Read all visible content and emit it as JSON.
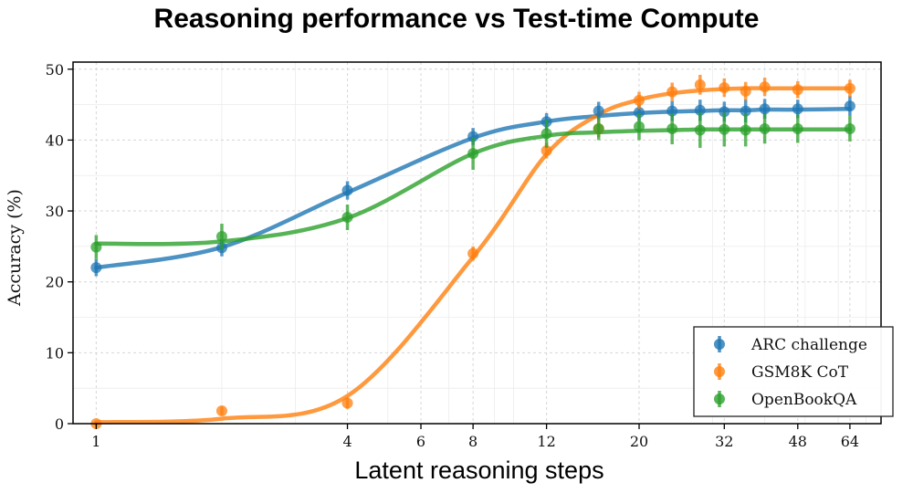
{
  "chart_data": {
    "type": "line",
    "title": "Reasoning performance vs Test-time Compute",
    "xlabel": "Latent reasoning steps",
    "ylabel": "Accuracy (%)",
    "x_scale": "log",
    "xlim": [
      0.88,
      76
    ],
    "ylim": [
      0,
      51
    ],
    "x_ticks": [
      1,
      4,
      6,
      8,
      12,
      20,
      32,
      48,
      64
    ],
    "x_tick_labels": [
      "1",
      "4",
      "6",
      "8",
      "12",
      "20",
      "32",
      "48",
      "64"
    ],
    "y_ticks": [
      0,
      10,
      20,
      30,
      40,
      50
    ],
    "y_tick_labels": [
      "0",
      "10",
      "20",
      "30",
      "40",
      "50"
    ],
    "grid": true,
    "legend_position": "bottom-right",
    "x": [
      1,
      2,
      4,
      8,
      12,
      16,
      20,
      24,
      28,
      32,
      36,
      40,
      48,
      64
    ],
    "series": [
      {
        "name": "ARC challenge",
        "color": "#1f77b4",
        "values": [
          22.0,
          24.8,
          32.9,
          40.5,
          42.6,
          44.1,
          43.9,
          44.1,
          44.2,
          44.0,
          44.1,
          44.4,
          44.4,
          44.8
        ],
        "errors": [
          1.2,
          1.2,
          1.3,
          1.2,
          1.2,
          1.3,
          1.2,
          1.4,
          1.5,
          1.4,
          1.6,
          1.4,
          1.3,
          1.4
        ],
        "curve": [
          22.0,
          24.9,
          32.6,
          40.3,
          42.6,
          43.4,
          43.8,
          44.0,
          44.1,
          44.2,
          44.2,
          44.3,
          44.3,
          44.4
        ]
      },
      {
        "name": "GSM8K CoT",
        "color": "#ff7f0e",
        "values": [
          0.0,
          1.8,
          2.9,
          24.0,
          38.5,
          41.6,
          45.6,
          46.8,
          47.8,
          47.4,
          46.9,
          47.5,
          47.1,
          47.3
        ],
        "errors": [
          0.3,
          0.6,
          0.8,
          1.0,
          1.1,
          1.2,
          1.2,
          1.3,
          1.4,
          1.3,
          1.3,
          1.3,
          1.2,
          1.2
        ],
        "curve": [
          0.2,
          0.7,
          3.9,
          23.5,
          38.0,
          43.6,
          45.7,
          46.6,
          47.0,
          47.2,
          47.3,
          47.3,
          47.3,
          47.3
        ]
      },
      {
        "name": "OpenBookQA",
        "color": "#2ca02c",
        "values": [
          24.9,
          26.4,
          29.1,
          38.1,
          40.9,
          41.6,
          41.9,
          41.6,
          41.4,
          41.5,
          41.4,
          41.6,
          41.6,
          41.6
        ],
        "errors": [
          1.7,
          1.8,
          1.8,
          2.3,
          2.0,
          1.6,
          1.9,
          2.2,
          2.5,
          2.4,
          2.3,
          2.1,
          2.0,
          1.8
        ],
        "curve": [
          25.4,
          25.7,
          29.0,
          38.1,
          40.6,
          41.1,
          41.3,
          41.4,
          41.5,
          41.5,
          41.5,
          41.5,
          41.5,
          41.5
        ]
      }
    ]
  }
}
